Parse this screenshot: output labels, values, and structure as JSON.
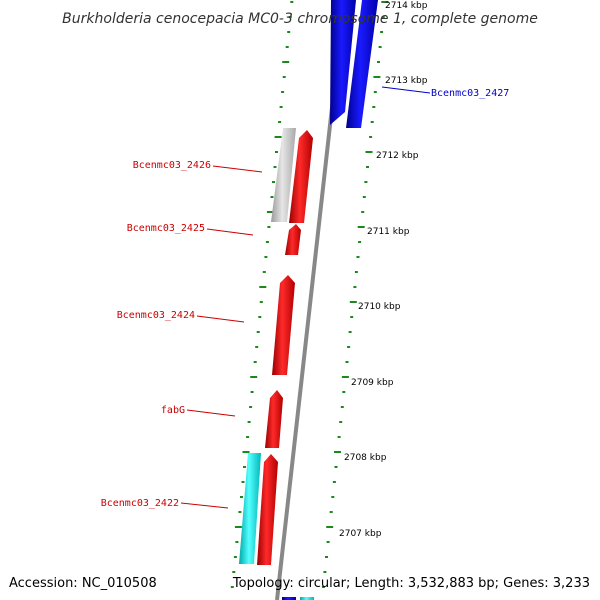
{
  "title": "Burkholderia cenocepacia MC0-3 chromosome 1, complete genome",
  "footer": {
    "accession": "Accession: NC_010508",
    "info": "Topology: circular; Length: 3,532,883 bp; Genes: 3,233"
  },
  "ticks": [
    "2714 kbp",
    "2713 kbp",
    "2712 kbp",
    "2711 kbp",
    "2710 kbp",
    "2709 kbp",
    "2708 kbp",
    "2707 kbp"
  ],
  "genes": [
    {
      "label": "Bcenmc03_2427",
      "color": "#0000cc"
    },
    {
      "label": "Bcenmc03_2426",
      "color": "#cc0000"
    },
    {
      "label": "Bcenmc03_2425",
      "color": "#cc0000"
    },
    {
      "label": "Bcenmc03_2424",
      "color": "#cc0000"
    },
    {
      "label": "fabG",
      "color": "#cc0000"
    },
    {
      "label": "Bcenmc03_2422",
      "color": "#cc0000"
    }
  ],
  "colors": {
    "forward_gene": "#ff0000",
    "reverse_gene": "#0000ee",
    "pseudo_gene": "#c8c8c8",
    "rna_gene": "#00eeee",
    "tick_marks": "#1a8a1a",
    "backbone": "#888888"
  }
}
